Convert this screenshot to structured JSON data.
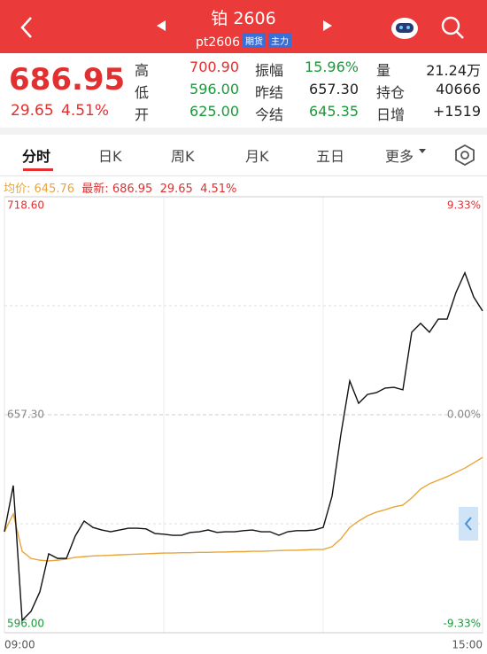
{
  "header": {
    "title": "铂 2606",
    "code": "pt2606",
    "badges": [
      "期货",
      "主力"
    ]
  },
  "quote": {
    "last": "686.95",
    "change": "29.65",
    "pct": "4.51%"
  },
  "stats": [
    {
      "label": "高",
      "value": "700.90"
    },
    {
      "label": "振幅",
      "value": "15.96%"
    },
    {
      "label": "量",
      "value": "21.24万"
    },
    {
      "label": "低",
      "value": "596.00"
    },
    {
      "label": "昨结",
      "value": "657.30"
    },
    {
      "label": "持仓",
      "value": "40666"
    },
    {
      "label": "开",
      "value": "625.00"
    },
    {
      "label": "今结",
      "value": "645.35"
    },
    {
      "label": "日增",
      "value": "+1519"
    }
  ],
  "tabs": [
    "分时",
    "日K",
    "周K",
    "月K",
    "五日",
    "更多"
  ],
  "info": {
    "avg_label": "均价:",
    "avg": "645.76",
    "latest_label": "最新:",
    "latest": "686.95",
    "change": "29.65",
    "pct": "4.51%"
  },
  "chart_data": {
    "type": "line",
    "ylim": [
      596.0,
      718.6
    ],
    "yticks": [
      {
        "value": 718.6,
        "label": "718.60"
      },
      {
        "value": 657.3,
        "label": "657.30"
      },
      {
        "value": 596.0,
        "label": "596.00"
      }
    ],
    "y2lim": [
      -9.33,
      9.33
    ],
    "y2ticks": [
      {
        "value": 9.33,
        "label": "9.33%"
      },
      {
        "value": 0,
        "label": "0.00%"
      },
      {
        "value": -9.33,
        "label": "-9.33%"
      }
    ],
    "xlim": [
      0,
      54
    ],
    "xticks": [
      {
        "value": 0,
        "label": "09:00"
      },
      {
        "value": 54,
        "label": "15:00"
      }
    ],
    "series": [
      {
        "color": "#111111",
        "values": [
          624.4,
          637.4,
          599.5,
          602.0,
          607.5,
          618.2,
          616.9,
          616.9,
          623.2,
          627.4,
          625.6,
          624.9,
          624.4,
          624.9,
          625.4,
          625.4,
          625.2,
          623.9,
          623.7,
          623.4,
          623.4,
          624.2,
          624.4,
          624.9,
          624.2,
          624.4,
          624.4,
          624.7,
          624.9,
          624.4,
          624.4,
          623.4,
          624.4,
          624.7,
          624.7,
          624.9,
          625.6,
          634.4,
          651.8,
          666.8,
          660.5,
          663.0,
          663.5,
          664.8,
          665.0,
          664.3,
          680.5,
          683.0,
          680.5,
          684.2,
          684.2,
          691.7,
          697.2,
          690.4,
          686.5
        ]
      },
      {
        "color": "#e8a53a",
        "values": [
          624.4,
          629.4,
          618.9,
          616.9,
          616.4,
          616.2,
          616.4,
          616.7,
          617.2,
          617.4,
          617.6,
          617.7,
          617.8,
          617.9,
          618.0,
          618.1,
          618.2,
          618.3,
          618.4,
          618.4,
          618.5,
          618.5,
          618.6,
          618.6,
          618.7,
          618.7,
          618.8,
          618.8,
          618.9,
          618.9,
          619.0,
          619.1,
          619.2,
          619.2,
          619.3,
          619.4,
          619.4,
          620.2,
          622.4,
          625.6,
          627.4,
          628.9,
          629.9,
          630.6,
          631.4,
          631.9,
          633.9,
          636.4,
          637.9,
          638.9,
          639.9,
          641.1,
          642.3,
          643.8,
          645.3
        ]
      }
    ]
  }
}
